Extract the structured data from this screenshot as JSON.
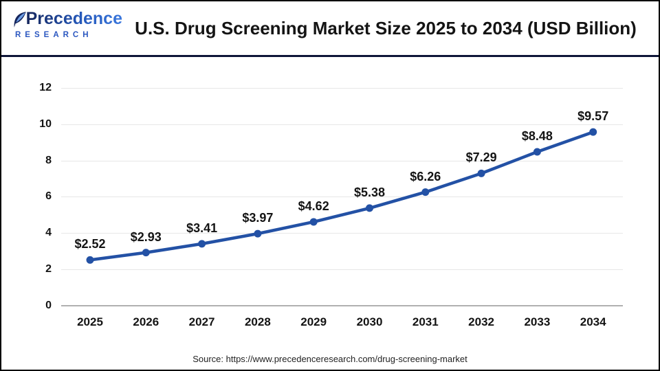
{
  "header": {
    "brand": {
      "name": "Precedence",
      "sub": "RESEARCH"
    },
    "title": "U.S. Drug Screening Market Size 2025 to 2034 (USD Billion)"
  },
  "chart_data": {
    "type": "line",
    "title": "U.S. Drug Screening Market Size 2025 to 2034 (USD Billion)",
    "categories": [
      "2025",
      "2026",
      "2027",
      "2028",
      "2029",
      "2030",
      "2031",
      "2032",
      "2033",
      "2034"
    ],
    "values": [
      2.52,
      2.93,
      3.41,
      3.97,
      4.62,
      5.38,
      6.26,
      7.29,
      8.48,
      9.57
    ],
    "point_labels": [
      "$2.52",
      "$2.93",
      "$3.41",
      "$3.97",
      "$4.62",
      "$5.38",
      "$6.26",
      "$7.29",
      "$8.48",
      "$9.57"
    ],
    "xlabel": "",
    "ylabel": "",
    "ylim": [
      0,
      12
    ],
    "yticks": [
      0,
      2,
      4,
      6,
      8,
      10,
      12
    ],
    "grid": true,
    "legend": "none",
    "line_color": "#2351a5",
    "marker_color": "#2351a5"
  },
  "source": "Source: https://www.precedenceresearch.com/drug-screening-market",
  "colors": {
    "accent_navy": "#0e1538",
    "brand_blue": "#2b57c0",
    "grid": "#e7e7e7",
    "zero_axis": "#b0b0b0",
    "text": "#141414"
  }
}
